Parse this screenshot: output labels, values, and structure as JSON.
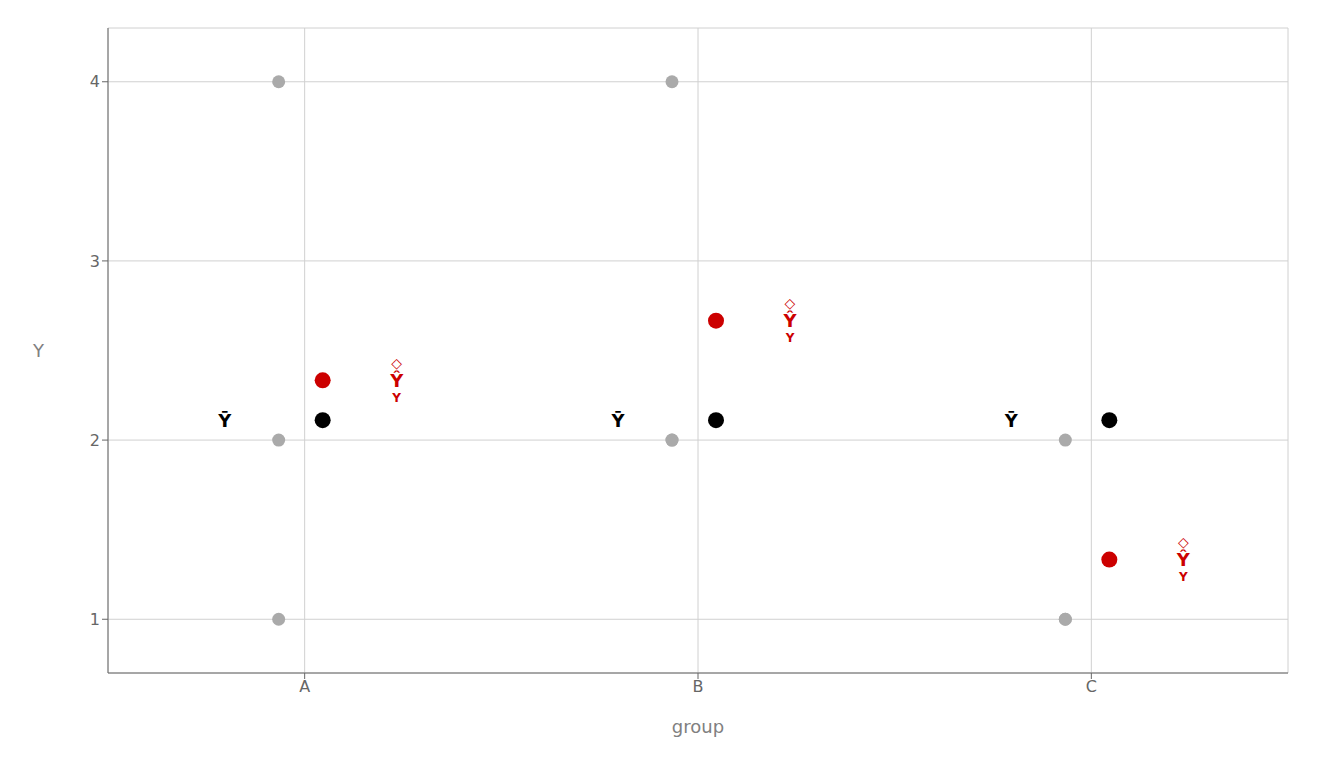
{
  "chart_data": {
    "type": "scatter",
    "xlabel": "group",
    "ylabel": "Y",
    "categories": [
      "A",
      "B",
      "C"
    ],
    "series": [
      {
        "color": "#aaaaaa",
        "marker": "circle",
        "values": [
          [
            1,
            2,
            4
          ],
          [
            2,
            2,
            4
          ],
          [
            1,
            2,
            1
          ]
        ]
      },
      {
        "color": "#000000",
        "marker": "circle",
        "values": [
          2.1111,
          2.1111,
          2.1111
        ]
      },
      {
        "color": "#cc0000",
        "marker": "circle",
        "values": [
          2.3333,
          2.6667,
          1.3333
        ]
      }
    ],
    "annotations": [
      {
        "text": "Ȳ",
        "x": "A",
        "y": 2.1111,
        "color": "#000000"
      },
      {
        "text": "Ȳ",
        "x": "B",
        "y": 2.1111,
        "color": "#000000"
      },
      {
        "text": "Ȳ",
        "x": "C",
        "y": 2.1111,
        "color": "#000000"
      },
      {
        "text": "Ŷ",
        "x": "A",
        "y": 2.3333,
        "color": "#cc0000"
      },
      {
        "text": "Ŷ",
        "x": "B",
        "y": 2.6667,
        "color": "#cc0000"
      },
      {
        "text": "Ŷ",
        "x": "C",
        "y": 1.3333,
        "color": "#cc0000"
      },
      {
        "text": "◇",
        "x": "A",
        "y": 2.4033,
        "color": "#cc0000"
      },
      {
        "text": "◇",
        "x": "B",
        "y": 2.7367,
        "color": "#cc0000"
      },
      {
        "text": "◇",
        "x": "C",
        "y": 1.4033,
        "color": "#cc0000"
      },
      {
        "text": "Y",
        "x": "A",
        "y": 2.2633,
        "color": "#cc0000"
      },
      {
        "text": "Y",
        "x": "B",
        "y": 2.5967,
        "color": "#cc0000"
      },
      {
        "text": "Y",
        "x": "C",
        "y": 1.2633,
        "color": "#cc0000"
      }
    ],
    "ylim": [
      0.7,
      4.3
    ],
    "yticks": [
      1,
      2,
      3,
      4
    ],
    "grid": true
  }
}
